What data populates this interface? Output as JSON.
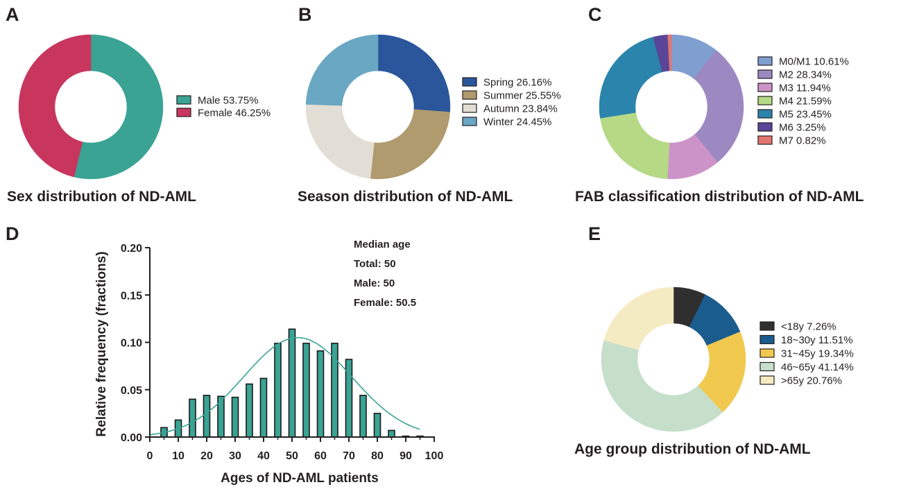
{
  "panels": {
    "A": {
      "letter": "A",
      "title": "Sex distribution of ND-AML"
    },
    "B": {
      "letter": "B",
      "title": "Season distribution of ND-AML"
    },
    "C": {
      "letter": "C",
      "title": "FAB classification distribution of ND-AML"
    },
    "D": {
      "letter": "D"
    },
    "E": {
      "letter": "E",
      "title": "Age group distribution of ND-AML"
    }
  },
  "median": {
    "heading": "Median age",
    "total": "Total: 50",
    "male": "Male: 50",
    "female": "Female: 50.5"
  },
  "chart_data": [
    {
      "id": "A",
      "type": "pie",
      "donut": true,
      "title": "Sex distribution of ND-AML",
      "legend_position": "right",
      "slices": [
        {
          "label": "Male 53.75%",
          "value": 53.75,
          "color": "#3aa394"
        },
        {
          "label": "Female 46.25%",
          "value": 46.25,
          "color": "#c8365e"
        }
      ]
    },
    {
      "id": "B",
      "type": "pie",
      "donut": true,
      "title": "Season distribution of ND-AML",
      "legend_position": "right",
      "slices": [
        {
          "label": "Spring 26.16%",
          "value": 26.16,
          "color": "#2b569b"
        },
        {
          "label": "Summer 25.55%",
          "value": 25.55,
          "color": "#b09b6e"
        },
        {
          "label": "Autumn 23.84%",
          "value": 23.84,
          "color": "#e2ded5"
        },
        {
          "label": "Winter 24.45%",
          "value": 24.45,
          "color": "#6aa7c2"
        }
      ]
    },
    {
      "id": "C",
      "type": "pie",
      "donut": true,
      "title": "FAB classification distribution of ND-AML",
      "legend_position": "right",
      "slices": [
        {
          "label": "M0/M1 10.61%",
          "value": 10.61,
          "color": "#7f9fd1"
        },
        {
          "label": "M2 28.34%",
          "value": 28.34,
          "color": "#9d89c2"
        },
        {
          "label": "M3 11.94%",
          "value": 11.94,
          "color": "#cc93c9"
        },
        {
          "label": "M4 21.59%",
          "value": 21.59,
          "color": "#b5d985"
        },
        {
          "label": "M5 23.45%",
          "value": 23.45,
          "color": "#2b84ab"
        },
        {
          "label": "M6 3.25%",
          "value": 3.25,
          "color": "#5a4598"
        },
        {
          "label": "M7 0.82%",
          "value": 0.82,
          "color": "#e37670"
        }
      ]
    },
    {
      "id": "D",
      "type": "bar",
      "xlabel": "Ages of ND-AML patients",
      "ylabel": "Relative frequency (fractions)",
      "xlim": [
        0,
        100
      ],
      "ylim": [
        0,
        0.2
      ],
      "xticks": [
        "0",
        "10",
        "20",
        "30",
        "40",
        "50",
        "60",
        "70",
        "80",
        "90",
        "100"
      ],
      "yticks": [
        "0.00",
        "0.05",
        "0.10",
        "0.15",
        "0.20"
      ],
      "bar_color": "#3aa394",
      "x": [
        5,
        10,
        15,
        20,
        25,
        30,
        35,
        40,
        45,
        50,
        55,
        60,
        65,
        70,
        75,
        80,
        85,
        90,
        95
      ],
      "values": [
        0.01,
        0.018,
        0.04,
        0.044,
        0.043,
        0.042,
        0.056,
        0.062,
        0.099,
        0.114,
        0.099,
        0.091,
        0.099,
        0.082,
        0.044,
        0.025,
        0.007,
        0.001,
        0.001
      ],
      "fit_curve": {
        "type": "gaussian",
        "mean": 52,
        "sd": 19,
        "peak": 0.105,
        "x_range": [
          0,
          95
        ],
        "color": "#3aa394"
      }
    },
    {
      "id": "E",
      "type": "pie",
      "donut": true,
      "title": "Age group distribution of ND-AML",
      "legend_position": "right",
      "slices": [
        {
          "label": "<18y 7.26%",
          "value": 7.26,
          "color": "#2f2f2f"
        },
        {
          "label": "18~30y 11.51%",
          "value": 11.51,
          "color": "#1b5c8f"
        },
        {
          "label": "31~45y 19.34%",
          "value": 19.34,
          "color": "#f1c94e"
        },
        {
          "label": "46~65y 41.14%",
          "value": 41.14,
          "color": "#c5dfca"
        },
        {
          "label": ">65y 20.76%",
          "value": 20.76,
          "color": "#f5ebc3"
        }
      ]
    }
  ]
}
